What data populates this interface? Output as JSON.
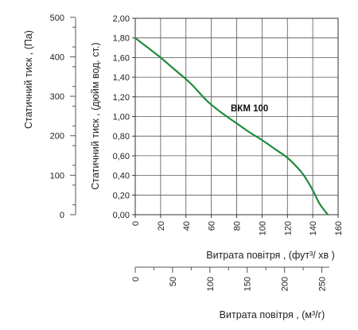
{
  "chart_data": {
    "type": "line",
    "xlabel": "Витрата повітря , (фут³/  хв )",
    "xlabel2": "Витрата повітря , (м³/г)",
    "ylabel": "Статичний тиск , (дюйм вод. ст.)",
    "ylabel2": "Статичний тиск , (Па)",
    "x_ticks": [
      "0",
      "20",
      "40",
      "60",
      "80",
      "100",
      "120",
      "140",
      "160"
    ],
    "x2_ticks": [
      "0",
      "50",
      "100",
      "150",
      "200",
      "250"
    ],
    "y_ticks": [
      "0,00",
      "0,20",
      "0,40",
      "0,60",
      "0,80",
      "1,00",
      "1,20",
      "1,40",
      "1,60",
      "1,80",
      "2,00"
    ],
    "y2_ticks": [
      "0",
      "100",
      "200",
      "300",
      "400",
      "500"
    ],
    "xlim": [
      0,
      160
    ],
    "ylim": [
      0,
      2.0
    ],
    "x2lim": [
      0,
      271.8
    ],
    "y2lim": [
      0,
      497.6
    ],
    "grid": true,
    "series": [
      {
        "name": "ВКМ 100",
        "color": "#1f8a3c",
        "x": [
          0,
          10,
          20,
          30,
          40,
          45,
          50,
          55,
          60,
          70,
          80,
          90,
          100,
          110,
          120,
          130,
          135,
          140,
          145,
          150,
          152
        ],
        "y": [
          1.8,
          1.7,
          1.6,
          1.49,
          1.38,
          1.32,
          1.25,
          1.18,
          1.12,
          1.02,
          0.93,
          0.84,
          0.76,
          0.67,
          0.58,
          0.45,
          0.36,
          0.25,
          0.12,
          0.03,
          0.0
        ]
      }
    ]
  }
}
